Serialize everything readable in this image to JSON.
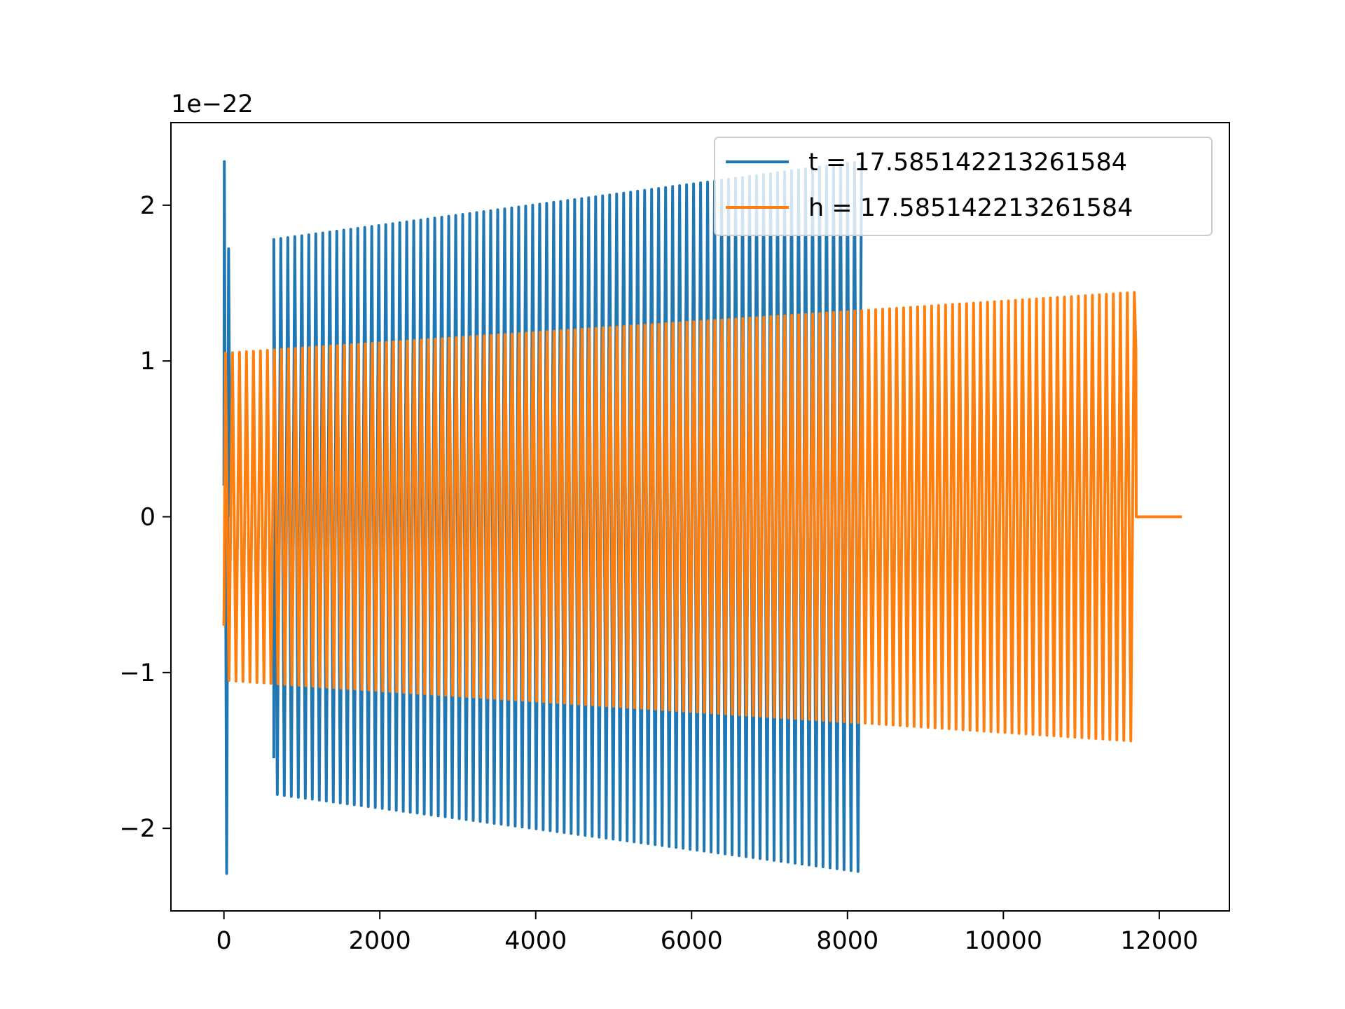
{
  "chart_data": {
    "type": "line",
    "title": "",
    "xlabel": "",
    "ylabel": "",
    "y_offset_label": "1e−22",
    "xlim": [
      -680,
      12900
    ],
    "ylim": [
      -2.53,
      2.53
    ],
    "x_ticks": [
      0,
      2000,
      4000,
      6000,
      8000,
      10000,
      12000
    ],
    "x_tick_labels": [
      "0",
      "2000",
      "4000",
      "6000",
      "8000",
      "10000",
      "12000"
    ],
    "y_ticks": [
      -2,
      -1,
      0,
      1,
      2
    ],
    "y_tick_labels": [
      "−2",
      "−1",
      "0",
      "1",
      "2"
    ],
    "grid": false,
    "legend_position": "upper-right",
    "series": [
      {
        "name": "t = 17.585142213261584",
        "color": "#1f77b4",
        "x_range": [
          0,
          8180
        ],
        "initial_segment": {
          "x_end": 60,
          "y_peak": 2.28,
          "y_trough": -2.29
        },
        "gap_x": [
          80,
          640
        ],
        "envelope_start": {
          "x": 640,
          "amplitude": 1.78
        },
        "envelope_end": {
          "x": 8180,
          "amplitude": 2.28
        },
        "cycles": 84
      },
      {
        "name": "h = 17.585142213261584",
        "color": "#ff7f0e",
        "x_range": [
          0,
          12290
        ],
        "envelope_start": {
          "x": 0,
          "amplitude": 1.05
        },
        "envelope_end": {
          "x": 11680,
          "amplitude": 1.44
        },
        "cycles": 130,
        "flat_tail": {
          "x_start": 11700,
          "x_end": 12290,
          "y": 0
        }
      }
    ]
  },
  "colors": {
    "axes": "#000000",
    "background": "#ffffff",
    "legend_border": "#cccccc"
  }
}
